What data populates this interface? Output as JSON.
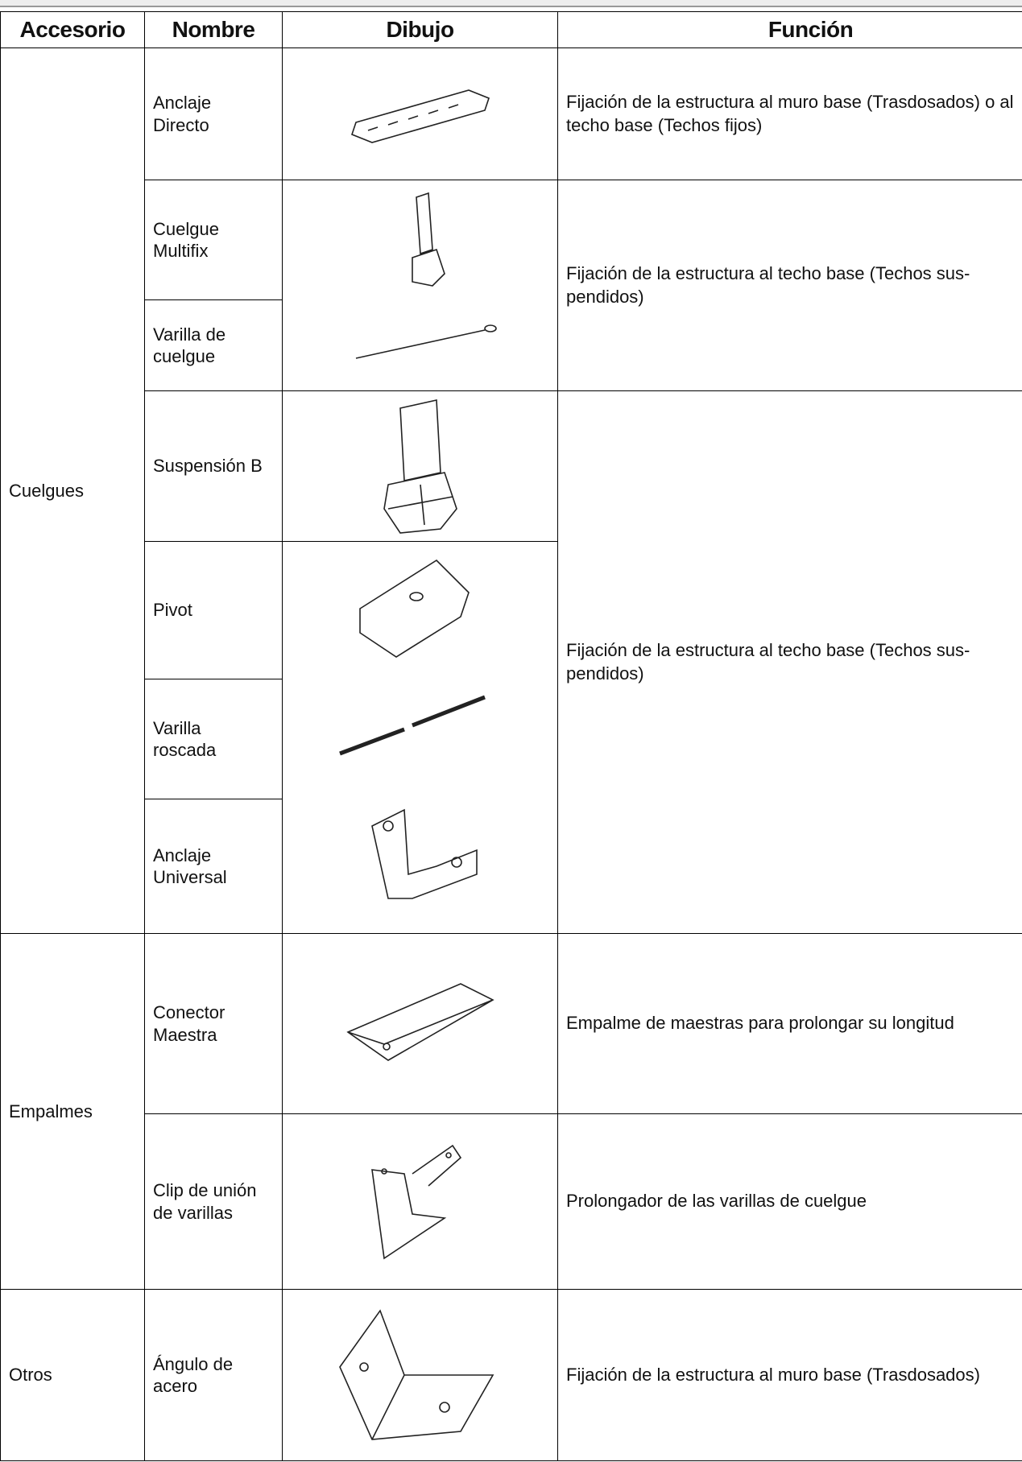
{
  "table": {
    "header": [
      "Accesorio",
      "Nombre",
      "Dibujo",
      "Función"
    ],
    "accesorios": [
      "Cuelgues",
      "Empalmes",
      "Otros"
    ],
    "nombres": [
      "Anclaje Directo",
      "Cuelgue Multifix",
      "Varilla de cuelgue",
      "Suspensión B",
      "Pivot",
      "Varilla roscada",
      "Anclaje Universal",
      "Conector Maestra",
      "Clip de unión de varillas",
      "Ángulo de acero"
    ],
    "funciones": [
      "Fijación de la estructura al muro base (Trasdosados) o al techo base (Techos fijos)",
      "Fijación de la estructura al techo base (Techos sus-pendidos)",
      "Fijación de la estructura al techo base (Techos sus-pendidos)",
      "Empalme de maestras para prolongar su longitud",
      "Prolongador de las varillas de cuelgue",
      "Fijación de la estructura al muro base (Trasdosados)"
    ]
  }
}
